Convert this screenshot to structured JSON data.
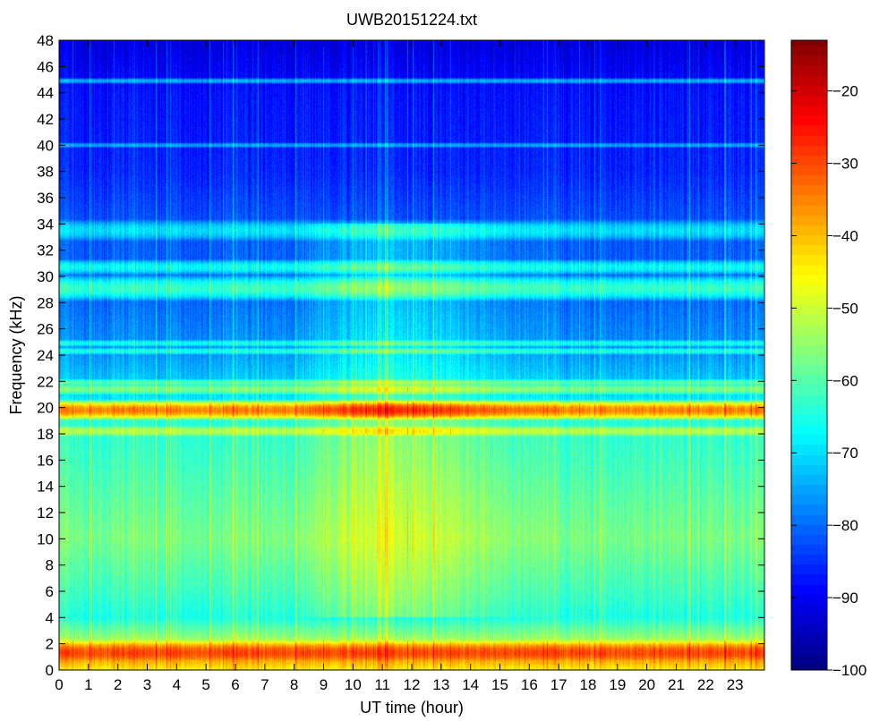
{
  "chart_data": {
    "type": "heatmap",
    "title": "UWB20151224.txt",
    "xlabel": "UT time (hour)",
    "ylabel": "Frequency (kHz)",
    "xlim": [
      0,
      24
    ],
    "ylim": [
      0,
      48
    ],
    "x_ticks": [
      "0",
      "1",
      "2",
      "3",
      "4",
      "5",
      "6",
      "7",
      "8",
      "9",
      "10",
      "11",
      "12",
      "13",
      "14",
      "15",
      "16",
      "17",
      "18",
      "19",
      "20",
      "21",
      "22",
      "23"
    ],
    "y_ticks": [
      "0",
      "2",
      "4",
      "6",
      "8",
      "10",
      "12",
      "14",
      "16",
      "18",
      "20",
      "22",
      "24",
      "26",
      "28",
      "30",
      "32",
      "34",
      "36",
      "38",
      "40",
      "42",
      "44",
      "46",
      "48"
    ],
    "x_tick_values": [
      0,
      1,
      2,
      3,
      4,
      5,
      6,
      7,
      8,
      9,
      10,
      11,
      12,
      13,
      14,
      15,
      16,
      17,
      18,
      19,
      20,
      21,
      22,
      23
    ],
    "y_tick_values": [
      0,
      2,
      4,
      6,
      8,
      10,
      12,
      14,
      16,
      18,
      20,
      22,
      24,
      26,
      28,
      30,
      32,
      34,
      36,
      38,
      40,
      42,
      44,
      46,
      48
    ],
    "colorbar": {
      "colormap": "jet",
      "range": [
        -100,
        -13
      ],
      "tick_values": [
        -100,
        -90,
        -80,
        -70,
        -60,
        -50,
        -40,
        -30,
        -20
      ],
      "ticks": [
        "−100",
        "−90",
        "−80",
        "−70",
        "−60",
        "−50",
        "−40",
        "−30",
        "−20"
      ]
    },
    "spectral_features": {
      "background_profile": [
        {
          "freq": 0.0,
          "level": -45
        },
        {
          "freq": 0.5,
          "level": -40
        },
        {
          "freq": 1.0,
          "level": -35
        },
        {
          "freq": 1.5,
          "level": -42
        },
        {
          "freq": 2.5,
          "level": -55
        },
        {
          "freq": 4.0,
          "level": -65
        },
        {
          "freq": 6.0,
          "level": -62
        },
        {
          "freq": 10.0,
          "level": -57
        },
        {
          "freq": 16.0,
          "level": -62
        },
        {
          "freq": 19.0,
          "level": -64
        },
        {
          "freq": 21.0,
          "level": -70
        },
        {
          "freq": 24.0,
          "level": -76
        },
        {
          "freq": 28.0,
          "level": -80
        },
        {
          "freq": 34.0,
          "level": -82
        },
        {
          "freq": 38.0,
          "level": -86
        },
        {
          "freq": 44.0,
          "level": -88
        },
        {
          "freq": 48.0,
          "level": -92
        }
      ],
      "narrowband_lines": [
        {
          "freq": 1.3,
          "level": -30,
          "width": 0.5
        },
        {
          "freq": 19.8,
          "level": -35,
          "width": 0.35
        },
        {
          "freq": 18.2,
          "level": -52,
          "width": 0.3
        },
        {
          "freq": 21.4,
          "level": -57,
          "width": 0.3
        },
        {
          "freq": 21.9,
          "level": -60,
          "width": 0.2
        },
        {
          "freq": 24.3,
          "level": -65,
          "width": 0.2
        },
        {
          "freq": 24.9,
          "level": -66,
          "width": 0.2
        },
        {
          "freq": 29.1,
          "level": -63,
          "width": 0.6
        },
        {
          "freq": 30.7,
          "level": -67,
          "width": 0.4
        },
        {
          "freq": 33.5,
          "level": -70,
          "width": 0.6
        },
        {
          "freq": 40.0,
          "level": -75,
          "width": 0.15
        },
        {
          "freq": 44.9,
          "level": -74,
          "width": 0.15
        }
      ],
      "daytime_enhancement": {
        "start_hour": 9.5,
        "end_hour": 16.5,
        "peak_hour": 11.5,
        "freq_range": [
          4,
          34
        ],
        "delta": 8
      }
    }
  }
}
